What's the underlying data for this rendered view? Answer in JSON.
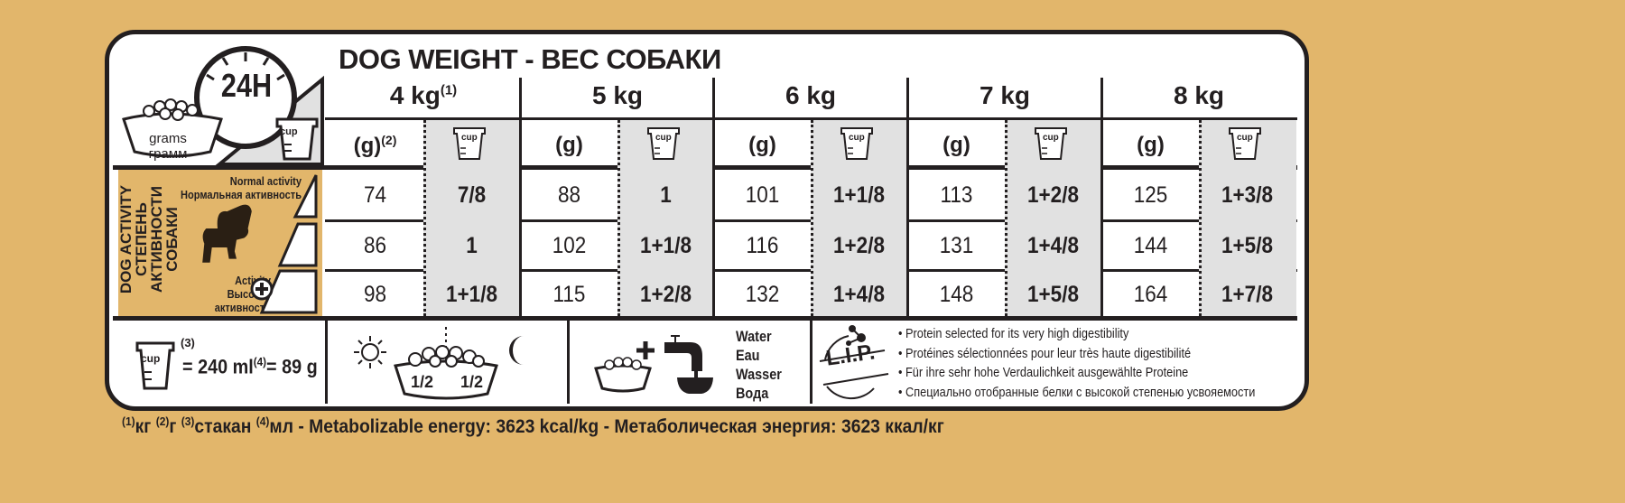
{
  "title": "DOG WEIGHT - ВЕС СОБАКИ",
  "header_icons": {
    "clock_label": "24H",
    "grams_label_en": "grams",
    "grams_label_ru": "грамм",
    "cup_label": "cup"
  },
  "weights": [
    {
      "label": "4 kg",
      "sup": "(1)"
    },
    {
      "label": "5 kg",
      "sup": ""
    },
    {
      "label": "6 kg",
      "sup": ""
    },
    {
      "label": "7 kg",
      "sup": ""
    },
    {
      "label": "8 kg",
      "sup": ""
    }
  ],
  "subheader": {
    "grams": "(g)",
    "grams_sup": "(2)",
    "cup": "cup"
  },
  "activity": {
    "side_label": [
      "DOG ACTIVITY",
      "СТЕПЕНЬ",
      "АКТИВНОСТИ",
      "СОБАКИ"
    ],
    "normal_en": "Normal activity",
    "normal_ru": "Нормальная активность",
    "high_en": "Activity",
    "high_ru1": "Высокая",
    "high_ru2": "активность"
  },
  "rows": [
    [
      [
        "74",
        "7/8"
      ],
      [
        "88",
        "1"
      ],
      [
        "101",
        "1+1/8"
      ],
      [
        "113",
        "1+2/8"
      ],
      [
        "125",
        "1+3/8"
      ]
    ],
    [
      [
        "86",
        "1"
      ],
      [
        "102",
        "1+1/8"
      ],
      [
        "116",
        "1+2/8"
      ],
      [
        "131",
        "1+4/8"
      ],
      [
        "144",
        "1+5/8"
      ]
    ],
    [
      [
        "98",
        "1+1/8"
      ],
      [
        "115",
        "1+2/8"
      ],
      [
        "132",
        "1+4/8"
      ],
      [
        "148",
        "1+5/8"
      ],
      [
        "164",
        "1+7/8"
      ]
    ]
  ],
  "cup_info": {
    "cup": "cup",
    "sup3": "(3)",
    "eq1": "= 240 ml",
    "sup4": "(4)",
    "eq2": "= 89 g"
  },
  "split": {
    "half1": "1/2",
    "half2": "1/2"
  },
  "water": [
    "Water",
    "Eau",
    "Wasser",
    "Вода"
  ],
  "lip": {
    "logo": "L.I.P.",
    "lines": [
      "• Protein selected for its very high digestibility",
      "• Protéines sélectionnées pour leur très haute digestibilité",
      "• Für ihre sehr hohe Verdaulichkeit ausgewählte Proteine",
      "• Специально отобранные белки с высокой степенью усвояемости"
    ]
  },
  "footer": {
    "s1": "(1)",
    "t1": "кг ",
    "s2": "(2)",
    "t2": "г ",
    "s3": "(3)",
    "t3": "стакан ",
    "s4": "(4)",
    "t4": "мл - Metabolizable energy: 3623 kcal/kg - Метаболическая энергия: 3623 ккал/кг"
  },
  "colors": {
    "background": "#e2b66b",
    "gray_cells": "#e1e1e1",
    "ink": "#231f20"
  }
}
